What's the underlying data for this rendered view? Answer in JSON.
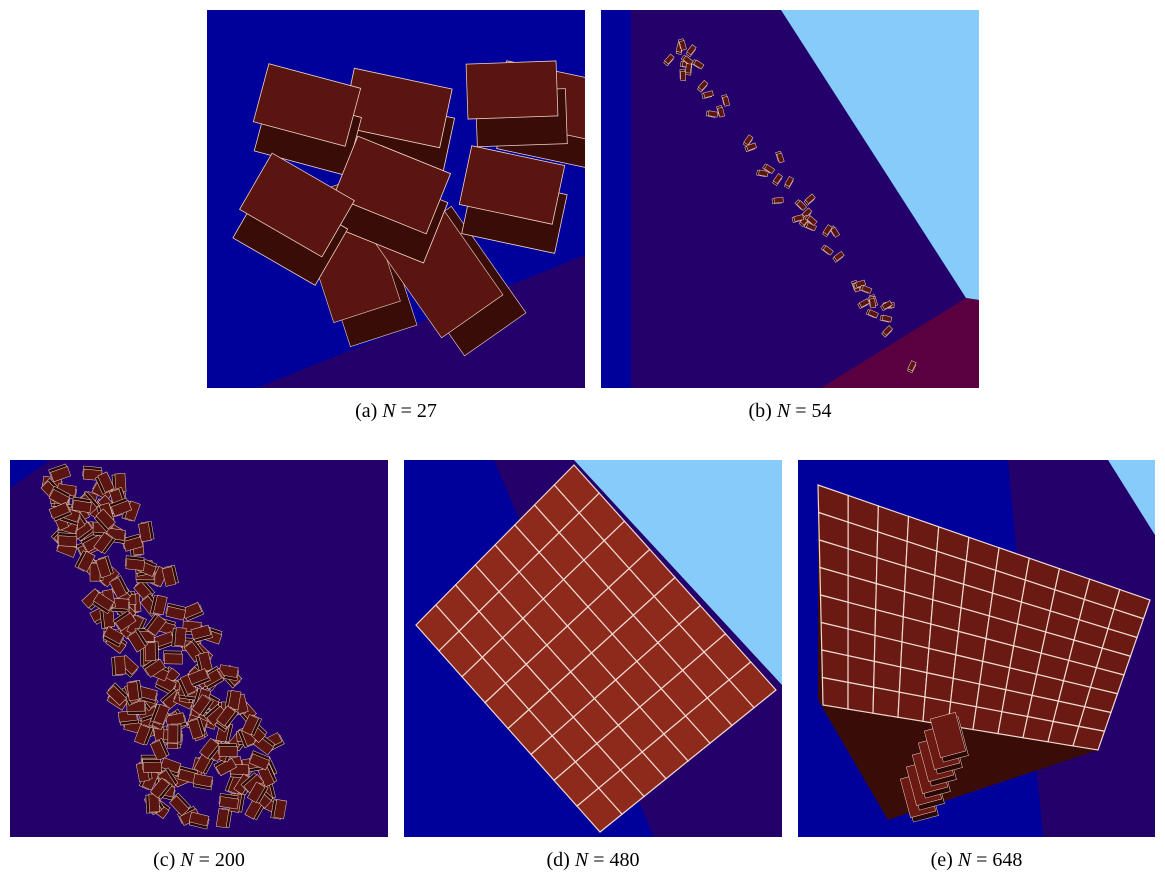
{
  "figure": {
    "panels": [
      {
        "label": "(a)",
        "symbol": "N",
        "relation": "=",
        "value": 27
      },
      {
        "label": "(b)",
        "symbol": "N",
        "relation": "=",
        "value": 54
      },
      {
        "label": "(c)",
        "symbol": "N",
        "relation": "=",
        "value": 200
      },
      {
        "label": "(d)",
        "symbol": "N",
        "relation": "=",
        "value": 480
      },
      {
        "label": "(e)",
        "symbol": "N",
        "relation": "=",
        "value": 648
      }
    ]
  }
}
